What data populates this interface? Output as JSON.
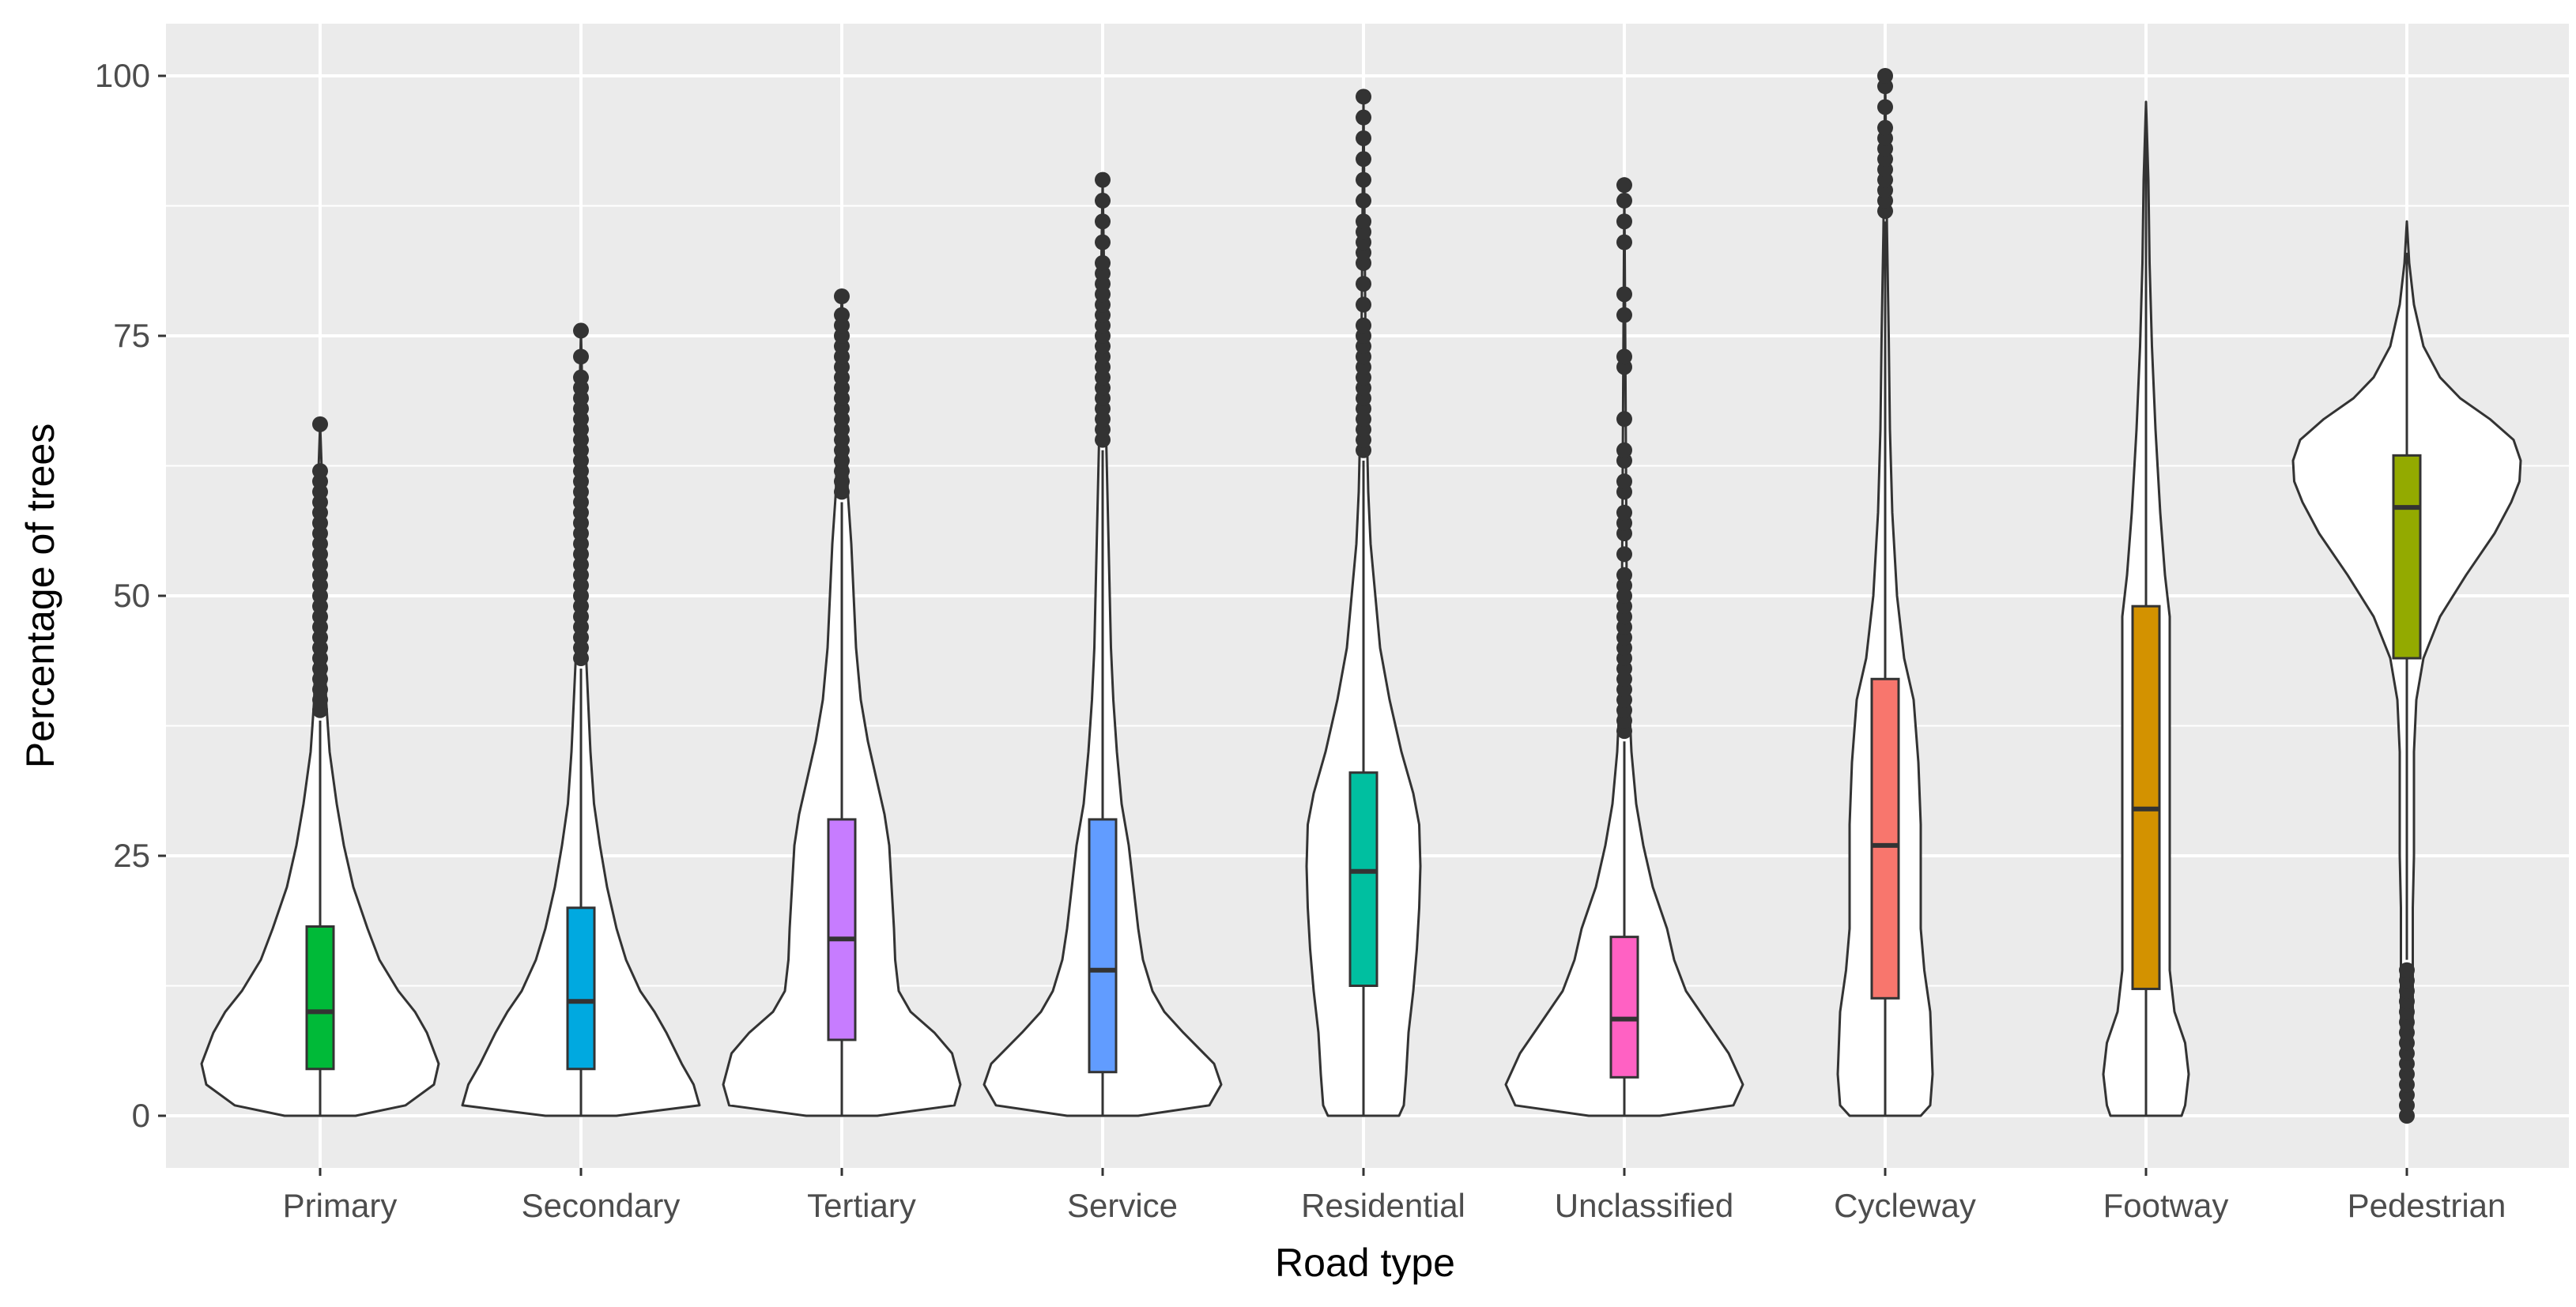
{
  "chart_data": {
    "type": "violin",
    "xlabel": "Road type",
    "ylabel": "Percentage of trees",
    "ylim": [
      -5,
      105
    ],
    "yticks": [
      0,
      25,
      50,
      75,
      100
    ],
    "grid": true,
    "legend": "none",
    "categories": [
      "Primary",
      "Secondary",
      "Tertiary",
      "Service",
      "Residential",
      "Unclassified",
      "Cycleway",
      "Footway",
      "Pedestrian"
    ],
    "series": [
      {
        "category": "Primary",
        "color": "#00ba38",
        "box": {
          "q1": 4.5,
          "median": 10,
          "q3": 18.2
        },
        "whisker": {
          "low": 0,
          "high": 38
        },
        "outliers": [
          39,
          40,
          41,
          42,
          43,
          44,
          45,
          46,
          47,
          48,
          49,
          50,
          51,
          52,
          53,
          54,
          55,
          56,
          57,
          58,
          59,
          60,
          61,
          62,
          66.5
        ],
        "density": [
          [
            0,
            0.3
          ],
          [
            1,
            0.72
          ],
          [
            3,
            0.96
          ],
          [
            5,
            1
          ],
          [
            8,
            0.9
          ],
          [
            10,
            0.8
          ],
          [
            12,
            0.66
          ],
          [
            15,
            0.5
          ],
          [
            18,
            0.4
          ],
          [
            22,
            0.28
          ],
          [
            26,
            0.2
          ],
          [
            30,
            0.14
          ],
          [
            35,
            0.08
          ],
          [
            40,
            0.05
          ],
          [
            50,
            0.03
          ],
          [
            60,
            0.02
          ],
          [
            66.5,
            0
          ]
        ]
      },
      {
        "category": "Secondary",
        "color": "#00a9e0",
        "box": {
          "q1": 4.5,
          "median": 11,
          "q3": 20
        },
        "whisker": {
          "low": 0,
          "high": 43
        },
        "outliers": [
          44,
          45,
          46,
          47,
          48,
          49,
          50,
          51,
          52,
          53,
          54,
          55,
          56,
          57,
          58,
          59,
          60,
          61,
          62,
          63,
          64,
          65,
          66,
          67,
          68,
          69,
          70,
          71,
          73,
          75.5
        ],
        "density": [
          [
            0,
            0.3
          ],
          [
            1,
            1
          ],
          [
            3,
            0.95
          ],
          [
            5,
            0.85
          ],
          [
            8,
            0.72
          ],
          [
            10,
            0.62
          ],
          [
            12,
            0.5
          ],
          [
            15,
            0.38
          ],
          [
            18,
            0.3
          ],
          [
            22,
            0.22
          ],
          [
            26,
            0.16
          ],
          [
            30,
            0.11
          ],
          [
            35,
            0.08
          ],
          [
            40,
            0.06
          ],
          [
            45,
            0.04
          ],
          [
            55,
            0.03
          ],
          [
            65,
            0.02
          ],
          [
            75.5,
            0
          ]
        ]
      },
      {
        "category": "Tertiary",
        "color": "#c77cff",
        "box": {
          "q1": 7.3,
          "median": 17,
          "q3": 28.5
        },
        "whisker": {
          "low": 0,
          "high": 59
        },
        "outliers": [
          60,
          61,
          62,
          63,
          64,
          65,
          66,
          67,
          68,
          69,
          70,
          71,
          72,
          73,
          74,
          75,
          76,
          77,
          78.8
        ],
        "density": [
          [
            0,
            0.3
          ],
          [
            1,
            0.95
          ],
          [
            3,
            1
          ],
          [
            6,
            0.93
          ],
          [
            8,
            0.78
          ],
          [
            10,
            0.58
          ],
          [
            12,
            0.48
          ],
          [
            15,
            0.45
          ],
          [
            18,
            0.44
          ],
          [
            22,
            0.42
          ],
          [
            26,
            0.4
          ],
          [
            29,
            0.36
          ],
          [
            32,
            0.3
          ],
          [
            36,
            0.22
          ],
          [
            40,
            0.16
          ],
          [
            45,
            0.12
          ],
          [
            50,
            0.1
          ],
          [
            55,
            0.08
          ],
          [
            60,
            0.05
          ],
          [
            70,
            0.03
          ],
          [
            78.8,
            0
          ]
        ]
      },
      {
        "category": "Service",
        "color": "#619cff",
        "box": {
          "q1": 4.2,
          "median": 14,
          "q3": 28.5
        },
        "whisker": {
          "low": 0,
          "high": 64
        },
        "outliers": [
          65,
          66,
          67,
          68,
          69,
          70,
          71,
          72,
          73,
          74,
          75,
          76,
          77,
          78,
          79,
          80,
          81,
          82,
          84,
          86,
          88,
          90
        ],
        "density": [
          [
            0,
            0.3
          ],
          [
            1,
            0.9
          ],
          [
            3,
            1
          ],
          [
            5,
            0.94
          ],
          [
            8,
            0.68
          ],
          [
            10,
            0.52
          ],
          [
            12,
            0.42
          ],
          [
            15,
            0.34
          ],
          [
            18,
            0.3
          ],
          [
            22,
            0.26
          ],
          [
            26,
            0.22
          ],
          [
            30,
            0.16
          ],
          [
            35,
            0.12
          ],
          [
            40,
            0.09
          ],
          [
            45,
            0.07
          ],
          [
            55,
            0.05
          ],
          [
            65,
            0.03
          ],
          [
            75,
            0.02
          ],
          [
            90,
            0
          ]
        ]
      },
      {
        "category": "Residential",
        "color": "#00bfa0",
        "box": {
          "q1": 12.5,
          "median": 23.5,
          "q3": 33
        },
        "whisker": {
          "low": 0,
          "high": 63
        },
        "outliers": [
          64,
          65,
          66,
          67,
          68,
          69,
          70,
          71,
          72,
          73,
          74,
          75,
          76,
          78,
          80,
          82,
          83,
          84,
          85,
          86,
          88,
          90,
          92,
          94,
          96,
          98
        ],
        "density": [
          [
            0,
            0.3
          ],
          [
            1,
            0.34
          ],
          [
            4,
            0.36
          ],
          [
            8,
            0.38
          ],
          [
            12,
            0.42
          ],
          [
            16,
            0.45
          ],
          [
            20,
            0.47
          ],
          [
            24,
            0.48
          ],
          [
            28,
            0.47
          ],
          [
            31,
            0.42
          ],
          [
            35,
            0.32
          ],
          [
            40,
            0.22
          ],
          [
            45,
            0.14
          ],
          [
            50,
            0.1
          ],
          [
            55,
            0.06
          ],
          [
            60,
            0.04
          ],
          [
            70,
            0.02
          ],
          [
            98,
            0
          ]
        ]
      },
      {
        "category": "Unclassified",
        "color": "#ff61c3",
        "box": {
          "q1": 3.7,
          "median": 9.3,
          "q3": 17.2
        },
        "whisker": {
          "low": 0,
          "high": 36
        },
        "outliers": [
          37,
          38,
          39,
          40,
          41,
          42,
          43,
          44,
          45,
          46,
          47,
          48,
          49,
          50,
          51,
          52,
          54,
          56,
          57,
          58,
          60,
          61,
          63,
          64,
          67,
          72,
          73,
          77,
          79,
          84,
          86,
          88,
          89.5
        ],
        "density": [
          [
            0,
            0.3
          ],
          [
            1,
            0.92
          ],
          [
            3,
            1
          ],
          [
            6,
            0.88
          ],
          [
            9,
            0.7
          ],
          [
            12,
            0.52
          ],
          [
            15,
            0.42
          ],
          [
            18,
            0.36
          ],
          [
            22,
            0.24
          ],
          [
            26,
            0.16
          ],
          [
            30,
            0.1
          ],
          [
            35,
            0.06
          ],
          [
            40,
            0.04
          ],
          [
            50,
            0.02
          ],
          [
            60,
            0.015
          ],
          [
            89.5,
            0
          ]
        ]
      },
      {
        "category": "Cycleway",
        "color": "#f8766d",
        "box": {
          "q1": 11.3,
          "median": 26,
          "q3": 42
        },
        "whisker": {
          "low": 0,
          "high": 86
        },
        "outliers": [
          87,
          88,
          89,
          90,
          91,
          92,
          93,
          94,
          95,
          97,
          99,
          100
        ],
        "density": [
          [
            0,
            0.3
          ],
          [
            1,
            0.38
          ],
          [
            4,
            0.4
          ],
          [
            10,
            0.38
          ],
          [
            14,
            0.33
          ],
          [
            18,
            0.3
          ],
          [
            22,
            0.3
          ],
          [
            28,
            0.3
          ],
          [
            34,
            0.28
          ],
          [
            40,
            0.24
          ],
          [
            44,
            0.16
          ],
          [
            50,
            0.1
          ],
          [
            58,
            0.06
          ],
          [
            66,
            0.04
          ],
          [
            75,
            0.03
          ],
          [
            85,
            0.015
          ],
          [
            100,
            0
          ]
        ]
      },
      {
        "category": "Footway",
        "color": "#d39200",
        "box": {
          "q1": 12.2,
          "median": 29.5,
          "q3": 49
        },
        "whisker": {
          "low": 0,
          "high": 97
        },
        "outliers": [],
        "density": [
          [
            0,
            0.3
          ],
          [
            1,
            0.33
          ],
          [
            4,
            0.36
          ],
          [
            7,
            0.33
          ],
          [
            10,
            0.24
          ],
          [
            14,
            0.2
          ],
          [
            20,
            0.2
          ],
          [
            30,
            0.2
          ],
          [
            40,
            0.2
          ],
          [
            48,
            0.2
          ],
          [
            52,
            0.16
          ],
          [
            58,
            0.12
          ],
          [
            66,
            0.08
          ],
          [
            74,
            0.05
          ],
          [
            82,
            0.03
          ],
          [
            90,
            0.02
          ],
          [
            97.5,
            0
          ]
        ]
      },
      {
        "category": "Pedestrian",
        "color": "#93aa00",
        "box": {
          "q1": 44,
          "median": 58.5,
          "q3": 63.5
        },
        "whisker": {
          "low": 15,
          "high": 83
        },
        "outliers": [
          0,
          1,
          2,
          3,
          4,
          5,
          6,
          7,
          8,
          9,
          10,
          11,
          12,
          13,
          14
        ],
        "density": [
          [
            0,
            0.02
          ],
          [
            5,
            0.04
          ],
          [
            10,
            0.05
          ],
          [
            15,
            0.05
          ],
          [
            20,
            0.05
          ],
          [
            25,
            0.06
          ],
          [
            30,
            0.06
          ],
          [
            35,
            0.06
          ],
          [
            40,
            0.08
          ],
          [
            44,
            0.14
          ],
          [
            48,
            0.28
          ],
          [
            52,
            0.5
          ],
          [
            56,
            0.74
          ],
          [
            59,
            0.88
          ],
          [
            61,
            0.95
          ],
          [
            63,
            0.96
          ],
          [
            65,
            0.9
          ],
          [
            67,
            0.7
          ],
          [
            69,
            0.45
          ],
          [
            71,
            0.28
          ],
          [
            74,
            0.14
          ],
          [
            78,
            0.06
          ],
          [
            82,
            0.02
          ],
          [
            86,
            0
          ]
        ]
      }
    ]
  }
}
